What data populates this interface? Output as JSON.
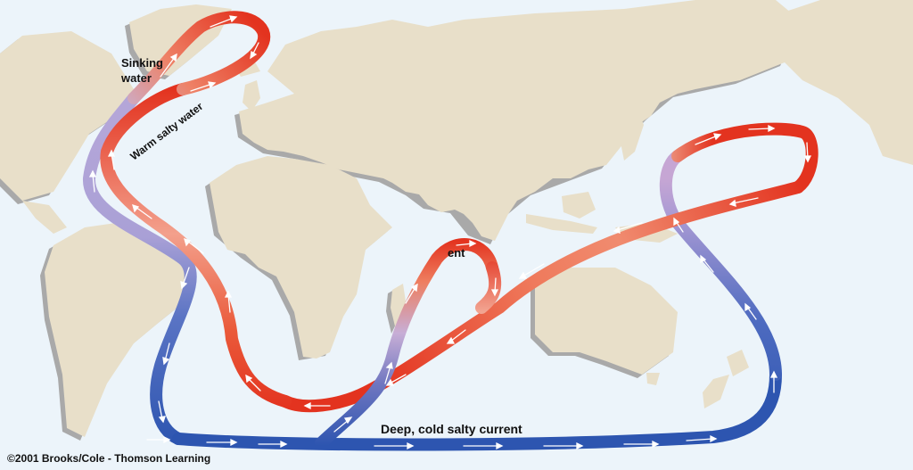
{
  "labels": {
    "sinking_line1": "Sinking",
    "sinking_line2": "water",
    "warm": "Warm salty water",
    "ent": "ent",
    "deep": "Deep, cold salty current",
    "credit": "©2001 Brooks/Cole - Thomson Learning"
  },
  "colors": {
    "ocean": "#ecf4fa",
    "land": "#e8dfc9",
    "land_shadow": "#a9a9a9",
    "warm_current": "#e3331f",
    "cold_current": "#2d55b0",
    "transition": "#b4a6d8",
    "arrows": "#ffffff"
  }
}
